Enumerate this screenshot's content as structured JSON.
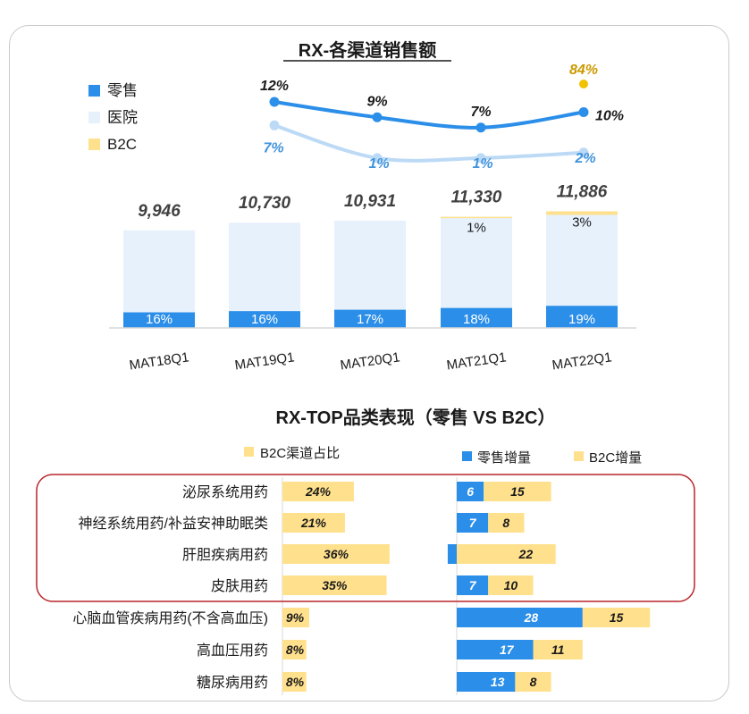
{
  "colors": {
    "retail": "#2b8ee8",
    "hospital": "#e7f1fc",
    "b2c": "#ffe08c",
    "retail_line": "#2b8ee8",
    "hospital_line": "#bcdaf6",
    "b2c_point": "#f2c200",
    "b2c_label": "#cc9900",
    "hospital_label": "#3f93dc",
    "negative": "#e00000",
    "highlight_box": "#b8262b",
    "divider": "#d9d9d9"
  },
  "chart_data": [
    {
      "type": "bar",
      "title": "RX-各渠道销售额",
      "stacked": true,
      "categories": [
        "MAT18Q1",
        "MAT19Q1",
        "MAT20Q1",
        "MAT21Q1",
        "MAT22Q1"
      ],
      "totals": [
        "9,946",
        "10,730",
        "10,931",
        "11,330",
        "11,886"
      ],
      "total_values": [
        9946,
        10730,
        10931,
        11330,
        11886
      ],
      "legend": [
        "零售",
        "医院",
        "B2C"
      ],
      "legend_position": "top-left",
      "series": [
        {
          "name": "零售",
          "share": [
            16,
            16,
            17,
            18,
            19
          ],
          "labels": [
            "16%",
            "16%",
            "17%",
            "18%",
            "19%"
          ]
        },
        {
          "name": "医院",
          "share": [
            84,
            84,
            83,
            81,
            78
          ]
        },
        {
          "name": "B2C",
          "share": [
            0,
            0,
            0,
            1,
            3
          ],
          "labels": [
            "",
            "",
            "",
            "1%",
            "3%"
          ]
        }
      ],
      "growth_lines": [
        {
          "series": "零售",
          "values": [
            12,
            9,
            7,
            10
          ],
          "labels": [
            "12%",
            "9%",
            "7%",
            "10%"
          ]
        },
        {
          "series": "医院",
          "values": [
            7,
            1,
            1,
            2
          ],
          "labels": [
            "7%",
            "1%",
            "1%",
            "2%"
          ]
        },
        {
          "series": "B2C",
          "values": [
            null,
            null,
            null,
            84
          ],
          "labels": [
            "",
            "",
            "",
            "84%"
          ]
        }
      ]
    },
    {
      "type": "bar",
      "orientation": "horizontal",
      "title": "RX-TOP品类表现（零售 VS B2C）",
      "categories": [
        "泌尿系统用药",
        "神经系统用药/补益安神助眠类",
        "肝胆疾病用药",
        "皮肤用药",
        "心脑血管疾病用药(不含高血压)",
        "高血压用药",
        "糖尿病用药"
      ],
      "highlighted_categories": [
        "泌尿系统用药",
        "神经系统用药/补益安神助眠类",
        "肝胆疾病用药",
        "皮肤用药"
      ],
      "share_panel": {
        "legend": "B2C渠道占比",
        "values": [
          24,
          21,
          36,
          35,
          9,
          8,
          8
        ],
        "labels": [
          "24%",
          "21%",
          "36%",
          "35%",
          "9%",
          "8%",
          "8%"
        ]
      },
      "increment_panel": {
        "legend": [
          "零售增量",
          "B2C增量"
        ],
        "series": [
          {
            "name": "零售增量",
            "values": [
              6,
              7,
              -2,
              7,
              28,
              17,
              13
            ],
            "labels": [
              "6",
              "7",
              "(2)",
              "7",
              "28",
              "17",
              "13"
            ]
          },
          {
            "name": "B2C增量",
            "values": [
              15,
              8,
              22,
              10,
              15,
              11,
              8
            ],
            "labels": [
              "15",
              "8",
              "22",
              "10",
              "15",
              "11",
              "8"
            ]
          }
        ]
      }
    }
  ]
}
